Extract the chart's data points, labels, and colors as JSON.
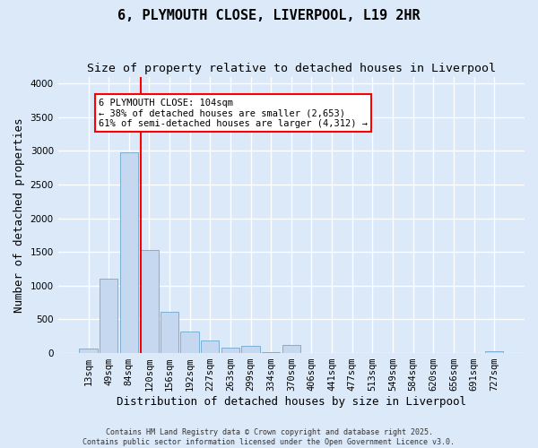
{
  "title": "6, PLYMOUTH CLOSE, LIVERPOOL, L19 2HR",
  "subtitle": "Size of property relative to detached houses in Liverpool",
  "xlabel": "Distribution of detached houses by size in Liverpool",
  "ylabel": "Number of detached properties",
  "categories": [
    "13sqm",
    "49sqm",
    "84sqm",
    "120sqm",
    "156sqm",
    "192sqm",
    "227sqm",
    "263sqm",
    "299sqm",
    "334sqm",
    "370sqm",
    "406sqm",
    "441sqm",
    "477sqm",
    "513sqm",
    "549sqm",
    "584sqm",
    "620sqm",
    "656sqm",
    "691sqm",
    "727sqm"
  ],
  "values": [
    70,
    1100,
    2980,
    1530,
    610,
    320,
    190,
    80,
    105,
    20,
    115,
    0,
    0,
    0,
    0,
    0,
    0,
    0,
    0,
    0,
    30
  ],
  "bar_color": "#c5d8f0",
  "bar_edge_color": "#7aafd4",
  "vline_color": "red",
  "annotation_text": "6 PLYMOUTH CLOSE: 104sqm\n← 38% of detached houses are smaller (2,653)\n61% of semi-detached houses are larger (4,312) →",
  "annotation_box_color": "white",
  "annotation_box_edge": "red",
  "ylim": [
    0,
    4100
  ],
  "yticks": [
    0,
    500,
    1000,
    1500,
    2000,
    2500,
    3000,
    3500,
    4000
  ],
  "footer": "Contains HM Land Registry data © Crown copyright and database right 2025.\nContains public sector information licensed under the Open Government Licence v3.0.",
  "bg_color": "#dce9f8",
  "plot_bg_color": "#dce9f8",
  "grid_color": "white",
  "title_fontsize": 11,
  "subtitle_fontsize": 9.5,
  "tick_fontsize": 7.5,
  "label_fontsize": 9,
  "footer_fontsize": 6
}
